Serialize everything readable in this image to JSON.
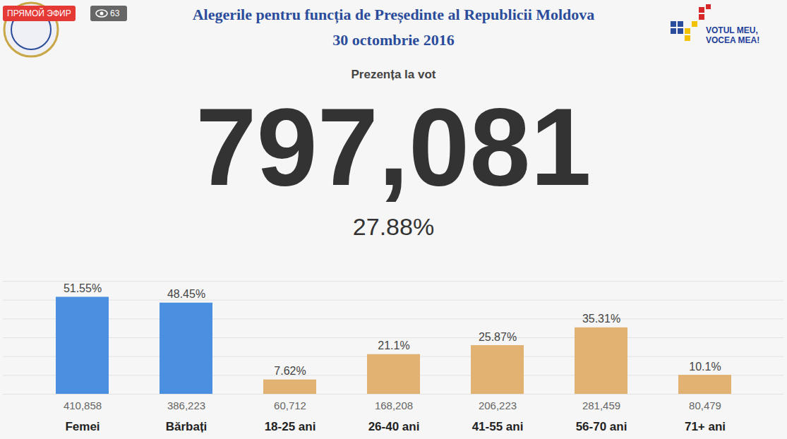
{
  "chart_data": {
    "type": "bar",
    "title": "Alegerile pentru funcția de Președinte al Republicii Moldova",
    "subtitle": "30 octombrie 2016",
    "heading": "Prezența la vot",
    "total_voters": 797081,
    "total_voters_label": "797,081",
    "turnout": 27.88,
    "turnout_label": "27.88%",
    "live_badge": "ПРЯМОЙ ЭФИР",
    "viewers": 63,
    "logo_text": [
      "VOTUL MEU,",
      "VOCEA MEA!"
    ],
    "categories": [
      "Femei",
      "Bărbați",
      "18-25 ani",
      "26-40 ani",
      "41-55 ani",
      "56-70 ani",
      "71+ ani"
    ],
    "values": [
      51.55,
      48.45,
      7.62,
      21.1,
      25.87,
      35.31,
      10.1
    ],
    "value_labels": [
      "51.55%",
      "48.45%",
      "7.62%",
      "21.1%",
      "25.87%",
      "35.31%",
      "10.1%"
    ],
    "counts": [
      410858,
      386223,
      60712,
      168208,
      206223,
      281459,
      80479
    ],
    "count_labels": [
      "410,858",
      "386,223",
      "60,712",
      "168,208",
      "206,223",
      "281,459",
      "80,479"
    ],
    "colors": [
      "#4a8fe0",
      "#4a8fe0",
      "#e2b273",
      "#e2b273",
      "#e2b273",
      "#e2b273",
      "#e2b273"
    ],
    "ylim": [
      0,
      60
    ],
    "yticks": [
      0,
      10,
      20,
      30,
      40,
      50,
      60
    ],
    "grid": true,
    "data_labels": true,
    "tick_labels": "x"
  }
}
